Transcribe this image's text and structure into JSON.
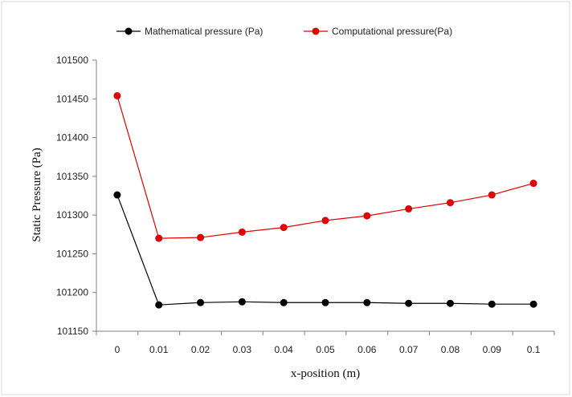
{
  "chart_data": {
    "type": "line",
    "xlabel": "x-position (m)",
    "ylabel": "Static Pressure (Pa)",
    "categories": [
      "0",
      "0.01",
      "0.02",
      "0.03",
      "0.04",
      "0.05",
      "0.06",
      "0.07",
      "0.08",
      "0.09",
      "0.1"
    ],
    "y_ticks": [
      "101150",
      "101200",
      "101250",
      "101300",
      "101350",
      "101400",
      "101450",
      "101500"
    ],
    "ylim": [
      101150,
      101500
    ],
    "grid": false,
    "legend_position": "top",
    "series": [
      {
        "name": "Mathematical pressure (Pa)",
        "color": "#000000",
        "values": [
          101326,
          101184,
          101187,
          101188,
          101187,
          101187,
          101187,
          101186,
          101186,
          101185,
          101185
        ]
      },
      {
        "name": "Computational pressure(Pa)",
        "color": "#e00000",
        "values": [
          101454,
          101270,
          101271,
          101278,
          101284,
          101293,
          101299,
          101308,
          101316,
          101326,
          101341
        ]
      }
    ]
  }
}
